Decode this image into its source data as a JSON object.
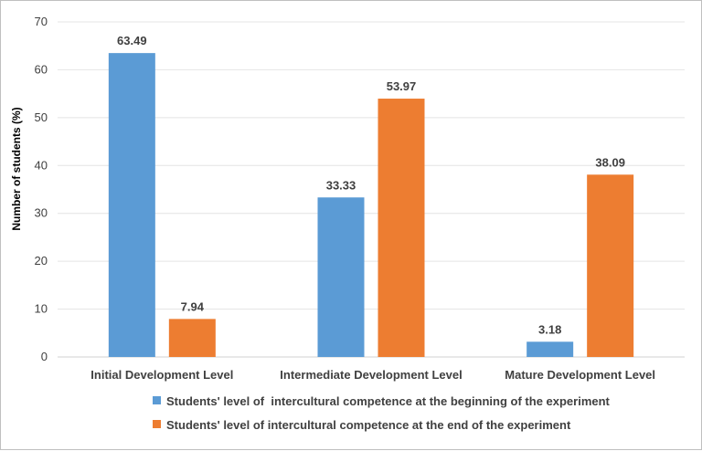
{
  "chart_data": {
    "type": "bar",
    "categories": [
      "Initial Development Level",
      "Intermediate Development Level",
      "Mature Development Level"
    ],
    "series": [
      {
        "name": "Students' level of  intercultural competence at the beginning of the experiment",
        "values": [
          63.49,
          33.33,
          3.18
        ],
        "labels": [
          "63.49",
          "33.33",
          "3.18"
        ],
        "color": "#5b9bd5"
      },
      {
        "name": "Students' level of intercultural competence at the end of the experiment",
        "values": [
          7.94,
          53.97,
          38.09
        ],
        "labels": [
          "7.94",
          "53.97",
          "38.09"
        ],
        "color": "#ed7d31"
      }
    ],
    "ylabel": "Number of students (%)",
    "xlabel": "",
    "ylim": [
      0,
      70
    ],
    "yticks": [
      "0",
      "10",
      "20",
      "30",
      "40",
      "50",
      "60",
      "70"
    ],
    "grid": true,
    "legend_position": "bottom"
  }
}
